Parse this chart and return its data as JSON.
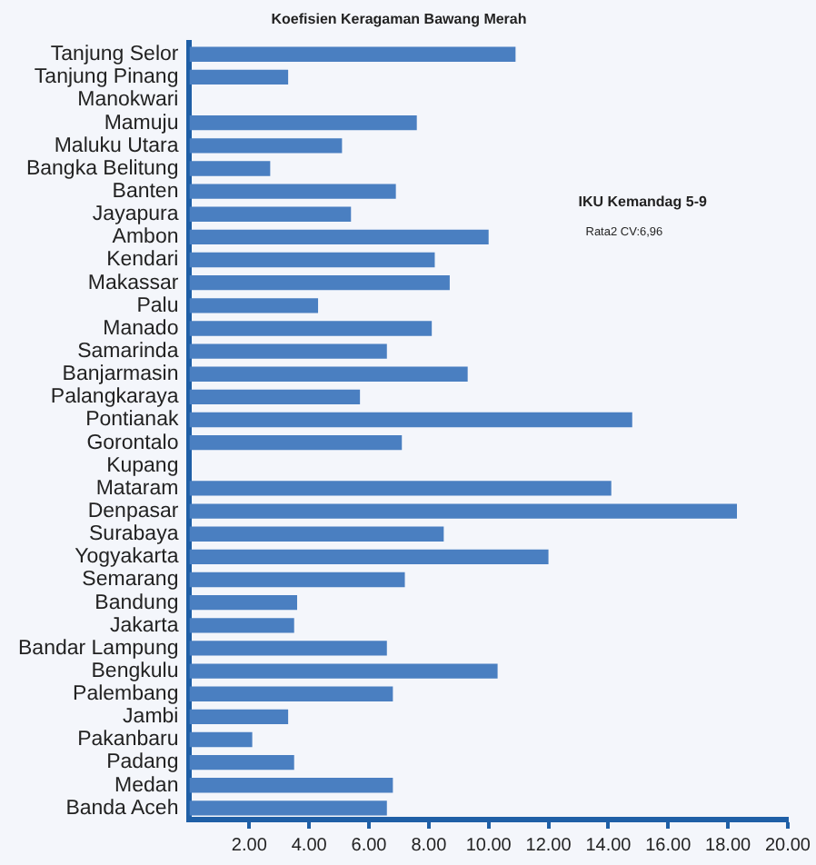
{
  "chart_data": {
    "type": "bar",
    "orientation": "horizontal",
    "title": "Koefisien Keragaman Bawang Merah",
    "categories": [
      "Tanjung Selor",
      "Tanjung Pinang",
      "Manokwari",
      "Mamuju",
      "Maluku Utara",
      "Bangka Belitung",
      "Banten",
      "Jayapura",
      "Ambon",
      "Kendari",
      "Makassar",
      "Palu",
      "Manado",
      "Samarinda",
      "Banjarmasin",
      "Palangkaraya",
      "Pontianak",
      "Gorontalo",
      "Kupang",
      "Mataram",
      "Denpasar",
      "Surabaya",
      "Yogyakarta",
      "Semarang",
      "Bandung",
      "Jakarta",
      "Bandar Lampung",
      "Bengkulu",
      "Palembang",
      "Jambi",
      "Pakanbaru",
      "Padang",
      "Medan",
      "Banda Aceh"
    ],
    "values": [
      10.9,
      3.3,
      null,
      7.6,
      5.1,
      2.7,
      6.9,
      5.4,
      10.0,
      8.2,
      8.7,
      4.3,
      8.1,
      6.6,
      9.3,
      5.7,
      14.8,
      7.1,
      null,
      14.1,
      18.3,
      8.5,
      12.0,
      7.2,
      3.6,
      3.5,
      6.6,
      10.3,
      6.8,
      3.3,
      2.1,
      3.5,
      6.8,
      6.6
    ],
    "color": "#4a7fc1",
    "xlim": [
      0,
      20
    ],
    "xticks": [
      {
        "value": 2,
        "label": "2.00"
      },
      {
        "value": 4,
        "label": "4.00"
      },
      {
        "value": 6,
        "label": "6.00"
      },
      {
        "value": 8,
        "label": "8.00"
      },
      {
        "value": 10,
        "label": "10.00"
      },
      {
        "value": 12,
        "label": "12.00"
      },
      {
        "value": 14,
        "label": "14.00"
      },
      {
        "value": 16,
        "label": "16.00"
      },
      {
        "value": 18,
        "label": "18.00"
      },
      {
        "value": 20,
        "label": "20.00"
      }
    ],
    "annotations": [
      "IKU Kemandag 5-9",
      "Rata2 CV:6,96"
    ],
    "grid": false,
    "legend": false
  }
}
